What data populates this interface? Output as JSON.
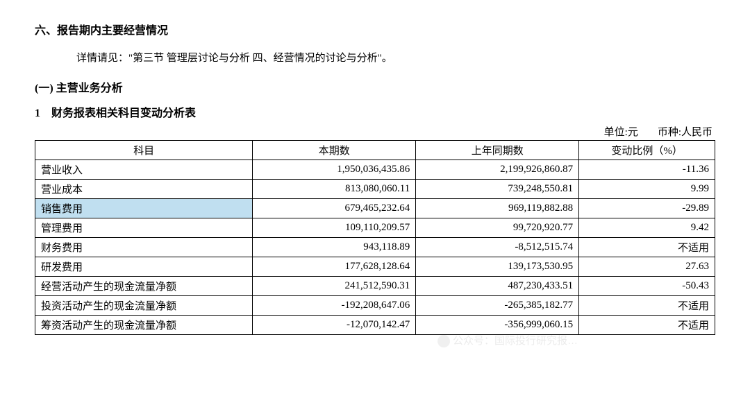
{
  "headings": {
    "section": "六、报告期内主要经营情况",
    "paragraph": "详情请见：\"第三节 管理层讨论与分析 四、经营情况的讨论与分析\"。",
    "subsection": "(一) 主营业务分析",
    "numbered": "1　财务报表相关科目变动分析表"
  },
  "unit": {
    "left": "单位:元",
    "right": "币种:人民币"
  },
  "table": {
    "headers": {
      "item": "科目",
      "current": "本期数",
      "prior": "上年同期数",
      "change": "变动比例（%）"
    },
    "rows": [
      {
        "item": "营业收入",
        "current": "1,950,036,435.86",
        "prior": "2,199,926,860.87",
        "change": "-11.36",
        "highlight": false
      },
      {
        "item": "营业成本",
        "current": "813,080,060.11",
        "prior": "739,248,550.81",
        "change": "9.99",
        "highlight": false
      },
      {
        "item": "销售费用",
        "current": "679,465,232.64",
        "prior": "969,119,882.88",
        "change": "-29.89",
        "highlight": true
      },
      {
        "item": "管理费用",
        "current": "109,110,209.57",
        "prior": "99,720,920.77",
        "change": "9.42",
        "highlight": false
      },
      {
        "item": "财务费用",
        "current": "943,118.89",
        "prior": "-8,512,515.74",
        "change": "不适用",
        "highlight": false
      },
      {
        "item": "研发费用",
        "current": "177,628,128.64",
        "prior": "139,173,530.95",
        "change": "27.63",
        "highlight": false
      },
      {
        "item": "经营活动产生的现金流量净额",
        "current": "241,512,590.31",
        "prior": "487,230,433.51",
        "change": "-50.43",
        "highlight": false
      },
      {
        "item": "投资活动产生的现金流量净额",
        "current": "-192,208,647.06",
        "prior": "-265,385,182.77",
        "change": "不适用",
        "highlight": false
      },
      {
        "item": "筹资活动产生的现金流量净额",
        "current": "-12,070,142.47",
        "prior": "-356,999,060.15",
        "change": "不适用",
        "highlight": false
      }
    ]
  },
  "watermark": {
    "text": "公众号：国际投行研究报…"
  },
  "colors": {
    "highlight_bg": "#c0dff0",
    "text": "#000000",
    "border": "#000000",
    "background": "#ffffff"
  }
}
